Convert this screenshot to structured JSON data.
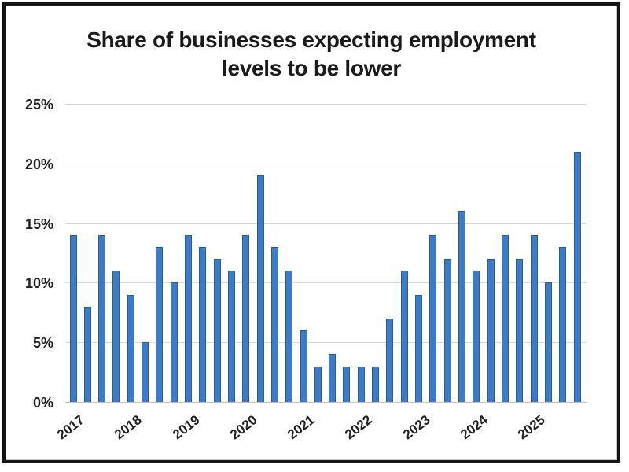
{
  "chart": {
    "title_line1": "Share of businesses expecting employment",
    "title_line2": "levels to be lower"
  },
  "chart_data": {
    "type": "bar",
    "title": "Share of businesses expecting employment levels to be lower",
    "xlabel": "",
    "ylabel": "",
    "ylim": [
      0,
      25
    ],
    "y_ticks": [
      0,
      5,
      10,
      15,
      20,
      25
    ],
    "y_tick_labels": [
      "0%",
      "5%",
      "10%",
      "15%",
      "20%",
      "25%"
    ],
    "x_tick_labels": [
      "2017",
      "2018",
      "2019",
      "2020",
      "2021",
      "2022",
      "2023",
      "2024",
      "2025"
    ],
    "bars_per_year": 4,
    "categories": [
      "2017 Q1",
      "2017 Q2",
      "2017 Q3",
      "2017 Q4",
      "2018 Q1",
      "2018 Q2",
      "2018 Q3",
      "2018 Q4",
      "2019 Q1",
      "2019 Q2",
      "2019 Q3",
      "2019 Q4",
      "2020 Q1",
      "2020 Q2",
      "2020 Q3",
      "2020 Q4",
      "2021 Q1",
      "2021 Q2",
      "2021 Q3",
      "2021 Q4",
      "2022 Q1",
      "2022 Q2",
      "2022 Q3",
      "2022 Q4",
      "2023 Q1",
      "2023 Q2",
      "2023 Q3",
      "2023 Q4",
      "2024 Q1",
      "2024 Q2",
      "2024 Q3",
      "2024 Q4",
      "2025 Q1",
      "2025 Q2",
      "2025 Q3",
      "2025 Q4"
    ],
    "values": [
      14,
      8,
      14,
      11,
      9,
      5,
      13,
      10,
      14,
      13,
      12,
      11,
      14,
      19,
      13,
      11,
      6,
      3,
      4,
      3,
      3,
      3,
      7,
      11,
      9,
      14,
      12,
      16,
      11,
      12,
      14,
      12,
      14,
      10,
      13,
      21
    ],
    "grid": true,
    "legend": false,
    "colors": {
      "bar_fill": "#3D7BC6",
      "bar_border": "#2B5D9B",
      "gridline": "#D9D9D9",
      "axis_line": "#C0C0C0",
      "text": "#1A1A1A"
    }
  }
}
